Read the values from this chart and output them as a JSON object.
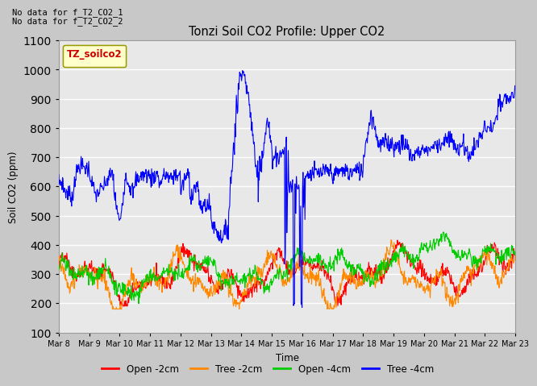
{
  "title": "Tonzi Soil CO2 Profile: Upper CO2",
  "xlabel": "Time",
  "ylabel": "Soil CO2 (ppm)",
  "ylim": [
    100,
    1100
  ],
  "annotation_lines": [
    "No data for f_T2_CO2_1",
    "No data for f_T2_CO2_2"
  ],
  "legend_label": "TZ_soilco2",
  "legend_entries": [
    "Open -2cm",
    "Tree -2cm",
    "Open -4cm",
    "Tree -4cm"
  ],
  "line_colors": [
    "#ff0000",
    "#ff8800",
    "#00cc00",
    "#0000ff"
  ],
  "fig_bg_color": "#c8c8c8",
  "plot_bg_color": "#e8e8e8",
  "grid_color": "#ffffff",
  "xtick_labels": [
    "Mar 8",
    "Mar 9",
    "Mar 10",
    "Mar 11",
    "Mar 12",
    "Mar 13",
    "Mar 14",
    "Mar 15",
    "Mar 16",
    "Mar 17",
    "Mar 18",
    "Mar 19",
    "Mar 20",
    "Mar 21",
    "Mar 22",
    "Mar 23"
  ],
  "xtick_positions": [
    0,
    1,
    2,
    3,
    4,
    5,
    6,
    7,
    8,
    9,
    10,
    11,
    12,
    13,
    14,
    15
  ]
}
